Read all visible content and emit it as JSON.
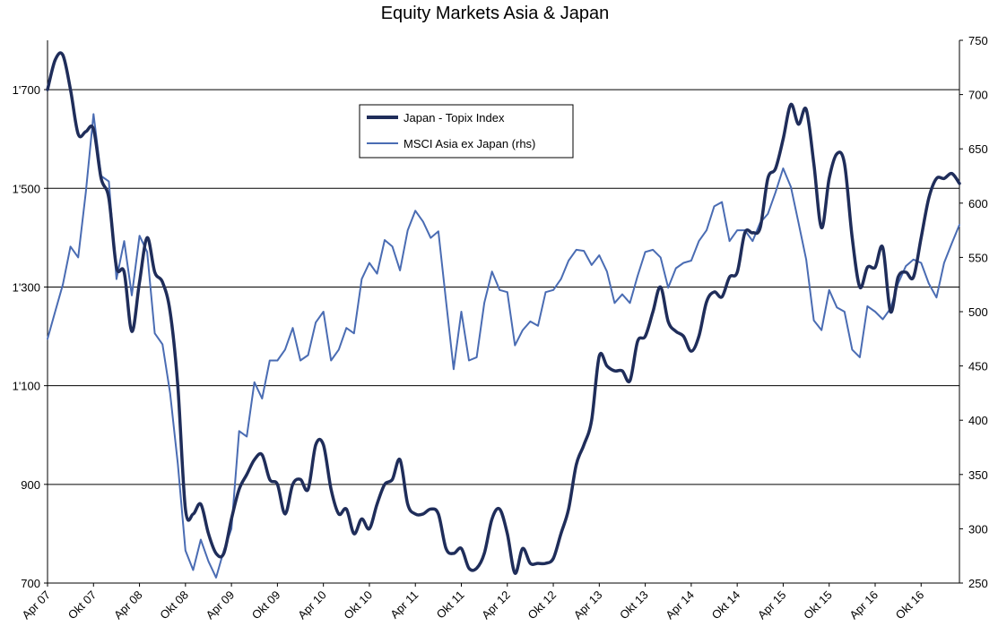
{
  "chart_data": {
    "type": "line",
    "title": "Equity Markets Asia & Japan",
    "x_tick_labels": [
      "Apr 07",
      "Okt 07",
      "Apr 08",
      "Okt 08",
      "Apr 09",
      "Okt 09",
      "Apr 10",
      "Okt 10",
      "Apr 11",
      "Okt 11",
      "Apr 12",
      "Okt 12",
      "Apr 13",
      "Okt 13",
      "Apr 14",
      "Okt 14",
      "Apr 15",
      "Okt 15",
      "Apr 16",
      "Okt 16"
    ],
    "y_left": {
      "min": 700,
      "max": 1800,
      "ticks": [
        700,
        900,
        1100,
        1300,
        1500,
        1700
      ],
      "tick_labels": [
        "700",
        "900",
        "1'100",
        "1'300",
        "1'500",
        "1'700"
      ]
    },
    "y_right": {
      "min": 250,
      "max": 750,
      "ticks": [
        250,
        300,
        350,
        400,
        450,
        500,
        550,
        600,
        650,
        700,
        750
      ],
      "tick_labels": [
        "250",
        "300",
        "350",
        "400",
        "450",
        "500",
        "550",
        "600",
        "650",
        "700",
        "750"
      ]
    },
    "x_range": [
      "2007-04",
      "2016-12"
    ],
    "gridlines": "horizontal at left-axis ticks",
    "legend_position": "top-center",
    "series": [
      {
        "name": "Japan - Topix Index",
        "axis": "left",
        "color": "#1f2d5a",
        "points": [
          [
            "2007-04",
            1700
          ],
          [
            "2007-05",
            1760
          ],
          [
            "2007-06",
            1770
          ],
          [
            "2007-07",
            1700
          ],
          [
            "2007-08",
            1610
          ],
          [
            "2007-09",
            1615
          ],
          [
            "2007-10",
            1620
          ],
          [
            "2007-11",
            1520
          ],
          [
            "2007-12",
            1480
          ],
          [
            "2008-01",
            1340
          ],
          [
            "2008-02",
            1330
          ],
          [
            "2008-03",
            1210
          ],
          [
            "2008-04",
            1310
          ],
          [
            "2008-05",
            1400
          ],
          [
            "2008-06",
            1330
          ],
          [
            "2008-07",
            1310
          ],
          [
            "2008-08",
            1250
          ],
          [
            "2008-09",
            1100
          ],
          [
            "2008-10",
            850
          ],
          [
            "2008-11",
            840
          ],
          [
            "2008-12",
            860
          ],
          [
            "2009-01",
            800
          ],
          [
            "2009-02",
            760
          ],
          [
            "2009-03",
            760
          ],
          [
            "2009-04",
            830
          ],
          [
            "2009-05",
            890
          ],
          [
            "2009-06",
            920
          ],
          [
            "2009-07",
            950
          ],
          [
            "2009-08",
            960
          ],
          [
            "2009-09",
            910
          ],
          [
            "2009-10",
            900
          ],
          [
            "2009-11",
            840
          ],
          [
            "2009-12",
            900
          ],
          [
            "2010-01",
            910
          ],
          [
            "2010-02",
            890
          ],
          [
            "2010-03",
            980
          ],
          [
            "2010-04",
            980
          ],
          [
            "2010-05",
            890
          ],
          [
            "2010-06",
            840
          ],
          [
            "2010-07",
            850
          ],
          [
            "2010-08",
            800
          ],
          [
            "2010-09",
            830
          ],
          [
            "2010-10",
            810
          ],
          [
            "2010-11",
            860
          ],
          [
            "2010-12",
            900
          ],
          [
            "2011-01",
            910
          ],
          [
            "2011-02",
            950
          ],
          [
            "2011-03",
            860
          ],
          [
            "2011-04",
            840
          ],
          [
            "2011-05",
            840
          ],
          [
            "2011-06",
            850
          ],
          [
            "2011-07",
            840
          ],
          [
            "2011-08",
            770
          ],
          [
            "2011-09",
            760
          ],
          [
            "2011-10",
            770
          ],
          [
            "2011-11",
            730
          ],
          [
            "2011-12",
            730
          ],
          [
            "2012-01",
            760
          ],
          [
            "2012-02",
            830
          ],
          [
            "2012-03",
            850
          ],
          [
            "2012-04",
            800
          ],
          [
            "2012-05",
            720
          ],
          [
            "2012-06",
            770
          ],
          [
            "2012-07",
            740
          ],
          [
            "2012-08",
            740
          ],
          [
            "2012-09",
            740
          ],
          [
            "2012-10",
            750
          ],
          [
            "2012-11",
            800
          ],
          [
            "2012-12",
            850
          ],
          [
            "2013-01",
            940
          ],
          [
            "2013-02",
            980
          ],
          [
            "2013-03",
            1030
          ],
          [
            "2013-04",
            1160
          ],
          [
            "2013-05",
            1140
          ],
          [
            "2013-06",
            1130
          ],
          [
            "2013-07",
            1130
          ],
          [
            "2013-08",
            1110
          ],
          [
            "2013-09",
            1190
          ],
          [
            "2013-10",
            1200
          ],
          [
            "2013-11",
            1250
          ],
          [
            "2013-12",
            1300
          ],
          [
            "2014-01",
            1230
          ],
          [
            "2014-02",
            1210
          ],
          [
            "2014-03",
            1200
          ],
          [
            "2014-04",
            1170
          ],
          [
            "2014-05",
            1200
          ],
          [
            "2014-06",
            1270
          ],
          [
            "2014-07",
            1290
          ],
          [
            "2014-08",
            1280
          ],
          [
            "2014-09",
            1320
          ],
          [
            "2014-10",
            1330
          ],
          [
            "2014-11",
            1410
          ],
          [
            "2014-12",
            1410
          ],
          [
            "2015-01",
            1420
          ],
          [
            "2015-02",
            1520
          ],
          [
            "2015-03",
            1540
          ],
          [
            "2015-04",
            1600
          ],
          [
            "2015-05",
            1670
          ],
          [
            "2015-06",
            1630
          ],
          [
            "2015-07",
            1660
          ],
          [
            "2015-08",
            1550
          ],
          [
            "2015-09",
            1420
          ],
          [
            "2015-10",
            1520
          ],
          [
            "2015-11",
            1570
          ],
          [
            "2015-12",
            1550
          ],
          [
            "2016-01",
            1400
          ],
          [
            "2016-02",
            1300
          ],
          [
            "2016-03",
            1340
          ],
          [
            "2016-04",
            1340
          ],
          [
            "2016-05",
            1380
          ],
          [
            "2016-06",
            1250
          ],
          [
            "2016-07",
            1320
          ],
          [
            "2016-08",
            1330
          ],
          [
            "2016-09",
            1320
          ],
          [
            "2016-10",
            1400
          ],
          [
            "2016-11",
            1480
          ],
          [
            "2016-12",
            1520
          ],
          [
            "2017-01",
            1520
          ],
          [
            "2017-02",
            1530
          ],
          [
            "2017-03",
            1510
          ]
        ]
      },
      {
        "name": "MSCI Asia ex Japan (rhs)",
        "axis": "right",
        "color": "#4a6cb3",
        "points": [
          [
            "2007-04",
            475
          ],
          [
            "2007-05",
            500
          ],
          [
            "2007-06",
            525
          ],
          [
            "2007-07",
            560
          ],
          [
            "2007-08",
            550
          ],
          [
            "2007-09",
            610
          ],
          [
            "2007-10",
            682
          ],
          [
            "2007-11",
            625
          ],
          [
            "2007-12",
            620
          ],
          [
            "2008-01",
            530
          ],
          [
            "2008-02",
            565
          ],
          [
            "2008-03",
            515
          ],
          [
            "2008-04",
            570
          ],
          [
            "2008-05",
            555
          ],
          [
            "2008-06",
            480
          ],
          [
            "2008-07",
            470
          ],
          [
            "2008-08",
            425
          ],
          [
            "2008-09",
            360
          ],
          [
            "2008-10",
            280
          ],
          [
            "2008-11",
            262
          ],
          [
            "2008-12",
            290
          ],
          [
            "2009-01",
            270
          ],
          [
            "2009-02",
            255
          ],
          [
            "2009-03",
            280
          ],
          [
            "2009-04",
            300
          ],
          [
            "2009-05",
            390
          ],
          [
            "2009-06",
            385
          ],
          [
            "2009-07",
            435
          ],
          [
            "2009-08",
            420
          ],
          [
            "2009-09",
            455
          ],
          [
            "2009-10",
            455
          ],
          [
            "2009-11",
            465
          ],
          [
            "2009-12",
            485
          ],
          [
            "2010-01",
            455
          ],
          [
            "2010-02",
            460
          ],
          [
            "2010-03",
            490
          ],
          [
            "2010-04",
            500
          ],
          [
            "2010-05",
            455
          ],
          [
            "2010-06",
            465
          ],
          [
            "2010-07",
            485
          ],
          [
            "2010-08",
            480
          ],
          [
            "2010-09",
            530
          ],
          [
            "2010-10",
            545
          ],
          [
            "2010-11",
            535
          ],
          [
            "2010-12",
            566
          ],
          [
            "2011-01",
            560
          ],
          [
            "2011-02",
            538
          ],
          [
            "2011-03",
            575
          ],
          [
            "2011-04",
            593
          ],
          [
            "2011-05",
            583
          ],
          [
            "2011-06",
            568
          ],
          [
            "2011-07",
            574
          ],
          [
            "2011-08",
            510
          ],
          [
            "2011-09",
            447
          ],
          [
            "2011-10",
            500
          ],
          [
            "2011-11",
            455
          ],
          [
            "2011-12",
            458
          ],
          [
            "2012-01",
            508
          ],
          [
            "2012-02",
            537
          ],
          [
            "2012-03",
            520
          ],
          [
            "2012-04",
            518
          ],
          [
            "2012-05",
            469
          ],
          [
            "2012-06",
            483
          ],
          [
            "2012-07",
            491
          ],
          [
            "2012-08",
            487
          ],
          [
            "2012-09",
            518
          ],
          [
            "2012-10",
            520
          ],
          [
            "2012-11",
            530
          ],
          [
            "2012-12",
            547
          ],
          [
            "2013-01",
            557
          ],
          [
            "2013-02",
            556
          ],
          [
            "2013-03",
            543
          ],
          [
            "2013-04",
            552
          ],
          [
            "2013-05",
            537
          ],
          [
            "2013-06",
            508
          ],
          [
            "2013-07",
            516
          ],
          [
            "2013-08",
            508
          ],
          [
            "2013-09",
            533
          ],
          [
            "2013-10",
            555
          ],
          [
            "2013-11",
            557
          ],
          [
            "2013-12",
            550
          ],
          [
            "2014-01",
            522
          ],
          [
            "2014-02",
            540
          ],
          [
            "2014-03",
            545
          ],
          [
            "2014-04",
            547
          ],
          [
            "2014-05",
            565
          ],
          [
            "2014-06",
            575
          ],
          [
            "2014-07",
            597
          ],
          [
            "2014-08",
            601
          ],
          [
            "2014-09",
            565
          ],
          [
            "2014-10",
            575
          ],
          [
            "2014-11",
            575
          ],
          [
            "2014-12",
            565
          ],
          [
            "2015-01",
            582
          ],
          [
            "2015-02",
            590
          ],
          [
            "2015-03",
            610
          ],
          [
            "2015-04",
            632
          ],
          [
            "2015-05",
            615
          ],
          [
            "2015-06",
            582
          ],
          [
            "2015-07",
            548
          ],
          [
            "2015-08",
            492
          ],
          [
            "2015-09",
            483
          ],
          [
            "2015-10",
            520
          ],
          [
            "2015-11",
            504
          ],
          [
            "2015-12",
            500
          ],
          [
            "2016-01",
            465
          ],
          [
            "2016-02",
            458
          ],
          [
            "2016-03",
            505
          ],
          [
            "2016-04",
            500
          ],
          [
            "2016-05",
            493
          ],
          [
            "2016-06",
            503
          ],
          [
            "2016-07",
            526
          ],
          [
            "2016-08",
            542
          ],
          [
            "2016-09",
            548
          ],
          [
            "2016-10",
            545
          ],
          [
            "2016-11",
            526
          ],
          [
            "2016-12",
            513
          ],
          [
            "2017-01",
            545
          ],
          [
            "2017-02",
            563
          ],
          [
            "2017-03",
            580
          ]
        ]
      }
    ]
  }
}
